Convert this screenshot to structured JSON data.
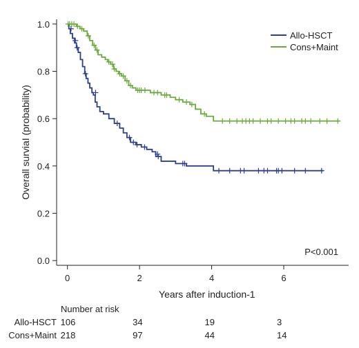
{
  "chart_data": {
    "type": "line",
    "subtype": "kaplan-meier",
    "xlabel": "Years after induction-1",
    "ylabel": "Overall surviaI (probability)",
    "xlim": [
      -0.3,
      7.8
    ],
    "ylim": [
      -0.02,
      1.02
    ],
    "xticks": [
      0,
      2,
      4,
      6
    ],
    "yticks": [
      0.0,
      0.2,
      0.4,
      0.6,
      0.8,
      1.0
    ],
    "ytick_labels": [
      "0.0",
      "0.2",
      "0.4",
      "0.6",
      "0.8",
      "1.0"
    ],
    "xtick_labels": [
      "0",
      "2",
      "4",
      "6"
    ],
    "legend_position": "top-right",
    "annotation": "P<0.001",
    "series": [
      {
        "name": "Allo-HSCT",
        "color": "#2b3f8c",
        "steps": [
          [
            0,
            1.0
          ],
          [
            0.04,
            0.98
          ],
          [
            0.08,
            0.96
          ],
          [
            0.14,
            0.94
          ],
          [
            0.2,
            0.92
          ],
          [
            0.25,
            0.9
          ],
          [
            0.3,
            0.88
          ],
          [
            0.36,
            0.85
          ],
          [
            0.42,
            0.82
          ],
          [
            0.48,
            0.79
          ],
          [
            0.52,
            0.77
          ],
          [
            0.57,
            0.75
          ],
          [
            0.62,
            0.73
          ],
          [
            0.68,
            0.71
          ],
          [
            0.72,
            0.7
          ],
          [
            0.77,
            0.67
          ],
          [
            0.82,
            0.65
          ],
          [
            0.9,
            0.63
          ],
          [
            1.0,
            0.62
          ],
          [
            1.15,
            0.6
          ],
          [
            1.3,
            0.58
          ],
          [
            1.45,
            0.56
          ],
          [
            1.55,
            0.54
          ],
          [
            1.65,
            0.52
          ],
          [
            1.75,
            0.5
          ],
          [
            1.9,
            0.49
          ],
          [
            2.05,
            0.48
          ],
          [
            2.2,
            0.47
          ],
          [
            2.35,
            0.46
          ],
          [
            2.45,
            0.44
          ],
          [
            2.6,
            0.42
          ],
          [
            3.0,
            0.41
          ],
          [
            3.3,
            0.4
          ],
          [
            4.05,
            0.38
          ],
          [
            7.1,
            0.38
          ]
        ],
        "censors": [
          [
            0.1,
            0.98
          ],
          [
            0.22,
            0.93
          ],
          [
            0.27,
            0.9
          ],
          [
            0.5,
            0.79
          ],
          [
            0.78,
            0.71
          ],
          [
            1.38,
            0.58
          ],
          [
            1.72,
            0.52
          ],
          [
            1.83,
            0.5
          ],
          [
            1.93,
            0.49
          ],
          [
            2.14,
            0.48
          ],
          [
            2.5,
            0.45
          ],
          [
            2.52,
            0.44
          ],
          [
            3.2,
            0.41
          ],
          [
            3.25,
            0.41
          ],
          [
            4.2,
            0.38
          ],
          [
            4.5,
            0.38
          ],
          [
            4.8,
            0.38
          ],
          [
            4.9,
            0.38
          ],
          [
            5.3,
            0.38
          ],
          [
            5.45,
            0.38
          ],
          [
            5.55,
            0.38
          ],
          [
            5.8,
            0.38
          ],
          [
            5.85,
            0.38
          ],
          [
            5.95,
            0.38
          ],
          [
            6.3,
            0.38
          ],
          [
            6.6,
            0.38
          ],
          [
            7.05,
            0.38
          ]
        ]
      },
      {
        "name": "Cons+Maint",
        "color": "#6aaa3a",
        "steps": [
          [
            0,
            1.0
          ],
          [
            0.25,
            0.99
          ],
          [
            0.35,
            0.98
          ],
          [
            0.45,
            0.97
          ],
          [
            0.55,
            0.95
          ],
          [
            0.62,
            0.93
          ],
          [
            0.7,
            0.91
          ],
          [
            0.78,
            0.89
          ],
          [
            0.85,
            0.87
          ],
          [
            0.95,
            0.86
          ],
          [
            1.05,
            0.85
          ],
          [
            1.12,
            0.84
          ],
          [
            1.2,
            0.83
          ],
          [
            1.28,
            0.81
          ],
          [
            1.35,
            0.8
          ],
          [
            1.42,
            0.79
          ],
          [
            1.5,
            0.78
          ],
          [
            1.6,
            0.76
          ],
          [
            1.7,
            0.74
          ],
          [
            1.8,
            0.73
          ],
          [
            1.9,
            0.72
          ],
          [
            2.3,
            0.71
          ],
          [
            2.6,
            0.7
          ],
          [
            2.85,
            0.69
          ],
          [
            3.0,
            0.68
          ],
          [
            3.2,
            0.67
          ],
          [
            3.4,
            0.66
          ],
          [
            3.55,
            0.64
          ],
          [
            3.7,
            0.62
          ],
          [
            3.85,
            0.61
          ],
          [
            4.05,
            0.59
          ],
          [
            7.55,
            0.59
          ]
        ],
        "censors": [
          [
            0.02,
            1.0
          ],
          [
            0.06,
            1.0
          ],
          [
            0.12,
            1.0
          ],
          [
            0.18,
            1.0
          ],
          [
            0.28,
            0.99
          ],
          [
            0.4,
            0.98
          ],
          [
            0.58,
            0.95
          ],
          [
            0.74,
            0.91
          ],
          [
            0.82,
            0.89
          ],
          [
            1.15,
            0.84
          ],
          [
            1.25,
            0.83
          ],
          [
            1.3,
            0.81
          ],
          [
            1.45,
            0.79
          ],
          [
            1.55,
            0.78
          ],
          [
            1.65,
            0.76
          ],
          [
            1.75,
            0.74
          ],
          [
            1.95,
            0.72
          ],
          [
            2.0,
            0.72
          ],
          [
            2.05,
            0.72
          ],
          [
            2.15,
            0.72
          ],
          [
            2.4,
            0.71
          ],
          [
            2.5,
            0.71
          ],
          [
            2.7,
            0.7
          ],
          [
            2.75,
            0.7
          ],
          [
            3.1,
            0.68
          ],
          [
            3.3,
            0.67
          ],
          [
            3.45,
            0.66
          ],
          [
            3.8,
            0.62
          ],
          [
            4.3,
            0.59
          ],
          [
            4.5,
            0.59
          ],
          [
            4.7,
            0.59
          ],
          [
            4.85,
            0.59
          ],
          [
            4.95,
            0.59
          ],
          [
            5.05,
            0.59
          ],
          [
            5.15,
            0.59
          ],
          [
            5.35,
            0.59
          ],
          [
            5.55,
            0.59
          ],
          [
            5.65,
            0.59
          ],
          [
            5.85,
            0.59
          ],
          [
            6.05,
            0.59
          ],
          [
            6.2,
            0.59
          ],
          [
            6.3,
            0.59
          ],
          [
            6.5,
            0.59
          ],
          [
            6.6,
            0.59
          ],
          [
            6.75,
            0.59
          ],
          [
            7.0,
            0.59
          ],
          [
            7.2,
            0.59
          ],
          [
            7.5,
            0.59
          ]
        ]
      }
    ],
    "risk_table": {
      "header": "Number at risk",
      "times": [
        0,
        2,
        4,
        6
      ],
      "rows": [
        {
          "label": "Allo-HSCT",
          "counts": [
            "106",
            "34",
            "19",
            "3"
          ]
        },
        {
          "label": "Cons+Maint",
          "counts": [
            "218",
            "97",
            "44",
            "14"
          ]
        }
      ]
    }
  }
}
